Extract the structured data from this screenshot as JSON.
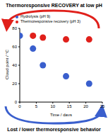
{
  "chart_data": {
    "type": "scatter",
    "annotations": [
      "Thermoresponsive RECOVERY at low pH",
      "Lost / lower thermoresponsive behavior"
    ],
    "x_label": "Time / days",
    "y_label": "Cloud point / °C",
    "xlim": [
      0,
      25
    ],
    "xticks": [
      0,
      5,
      10,
      15,
      20,
      25
    ],
    "ylim": [
      0,
      80
    ],
    "yticks": [
      0,
      20,
      40,
      60,
      80
    ],
    "grid": false,
    "legend": "top",
    "series": [
      {
        "name": "Hydrolysis (pH 9)",
        "color": "#3a5fcd",
        "marker": "circle",
        "x": [
          0,
          4,
          7,
          14,
          21
        ],
        "values": [
          72,
          58,
          40,
          28,
          20
        ]
      },
      {
        "name": "Thermoresponsive recovery (pH 3)",
        "color": "#e0201b",
        "marker": "circle",
        "x": [
          4,
          7,
          14,
          21
        ],
        "values": [
          72,
          70,
          68,
          68
        ]
      }
    ]
  }
}
